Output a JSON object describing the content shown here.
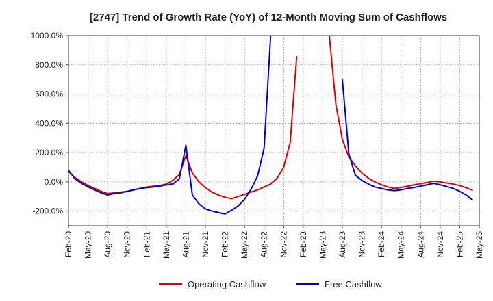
{
  "chart_data": {
    "type": "line",
    "title": "[2747]  Trend of Growth Rate (YoY) of 12-Month Moving Sum of Cashflows",
    "xlabel": "",
    "ylabel": "",
    "ylim": [
      -300,
      1000
    ],
    "y_ticks": [
      -200,
      0,
      200,
      400,
      600,
      800,
      1000
    ],
    "y_tick_labels": [
      "-200.0%",
      "0.0%",
      "200.0%",
      "400.0%",
      "600.0%",
      "800.0%",
      "1000.0%"
    ],
    "x_tick_labels": [
      "Feb-20",
      "May-20",
      "Aug-20",
      "Nov-20",
      "Feb-21",
      "May-21",
      "Aug-21",
      "Nov-21",
      "Feb-22",
      "May-22",
      "Aug-22",
      "Nov-22",
      "Feb-23",
      "May-23",
      "Aug-23",
      "Nov-23",
      "Feb-24",
      "May-24",
      "Aug-24",
      "Nov-24",
      "Feb-25",
      "May-25"
    ],
    "grid": true,
    "legend_position": "bottom",
    "series": [
      {
        "name": "Operating Cashflow",
        "color": "#dd0000",
        "points": [
          [
            0,
            70
          ],
          [
            1,
            30
          ],
          [
            2,
            0
          ],
          [
            3,
            -25
          ],
          [
            4,
            -45
          ],
          [
            5,
            -65
          ],
          [
            6,
            -80
          ],
          [
            7,
            -75
          ],
          [
            8,
            -70
          ],
          [
            9,
            -65
          ],
          [
            10,
            -55
          ],
          [
            11,
            -45
          ],
          [
            12,
            -35
          ],
          [
            13,
            -30
          ],
          [
            14,
            -25
          ],
          [
            15,
            -15
          ],
          [
            16,
            10
          ],
          [
            17,
            50
          ],
          [
            18,
            180
          ],
          [
            19,
            60
          ],
          [
            20,
            0
          ],
          [
            21,
            -40
          ],
          [
            22,
            -70
          ],
          [
            23,
            -90
          ],
          [
            24,
            -105
          ],
          [
            25,
            -115
          ],
          [
            26,
            -100
          ],
          [
            27,
            -85
          ],
          [
            28,
            -70
          ],
          [
            29,
            -55
          ],
          [
            30,
            -35
          ],
          [
            31,
            -15
          ],
          [
            32,
            25
          ],
          [
            33,
            100
          ],
          [
            34,
            270
          ],
          [
            35,
            860
          ],
          null,
          [
            40,
            1000
          ],
          [
            41,
            530
          ],
          [
            42,
            290
          ],
          [
            43,
            170
          ],
          [
            44,
            110
          ],
          [
            45,
            60
          ],
          [
            46,
            25
          ],
          [
            47,
            0
          ],
          [
            48,
            -20
          ],
          [
            49,
            -35
          ],
          [
            50,
            -45
          ],
          [
            51,
            -38
          ],
          [
            52,
            -30
          ],
          [
            53,
            -20
          ],
          [
            54,
            -12
          ],
          [
            55,
            -5
          ],
          [
            56,
            5
          ],
          [
            57,
            0
          ],
          [
            58,
            -8
          ],
          [
            59,
            -15
          ],
          [
            60,
            -25
          ],
          [
            61,
            -40
          ],
          [
            62,
            -58
          ]
        ]
      },
      {
        "name": "Free Cashflow",
        "color": "#0000cc",
        "points": [
          [
            0,
            80
          ],
          [
            1,
            20
          ],
          [
            2,
            -10
          ],
          [
            3,
            -35
          ],
          [
            4,
            -55
          ],
          [
            5,
            -75
          ],
          [
            6,
            -90
          ],
          [
            7,
            -80
          ],
          [
            8,
            -75
          ],
          [
            9,
            -65
          ],
          [
            10,
            -55
          ],
          [
            11,
            -45
          ],
          [
            12,
            -40
          ],
          [
            13,
            -35
          ],
          [
            14,
            -30
          ],
          [
            15,
            -20
          ],
          [
            16,
            -15
          ],
          [
            17,
            20
          ],
          [
            18,
            250
          ],
          [
            19,
            -90
          ],
          [
            20,
            -150
          ],
          [
            21,
            -185
          ],
          [
            22,
            -200
          ],
          [
            23,
            -210
          ],
          [
            24,
            -220
          ],
          [
            25,
            -195
          ],
          [
            26,
            -165
          ],
          [
            27,
            -120
          ],
          [
            28,
            -50
          ],
          [
            29,
            40
          ],
          [
            30,
            230
          ],
          [
            31,
            1000
          ],
          null,
          [
            42,
            700
          ],
          [
            43,
            190
          ],
          [
            44,
            45
          ],
          [
            45,
            10
          ],
          [
            46,
            -15
          ],
          [
            47,
            -35
          ],
          [
            48,
            -45
          ],
          [
            49,
            -55
          ],
          [
            50,
            -60
          ],
          [
            51,
            -55
          ],
          [
            52,
            -45
          ],
          [
            53,
            -38
          ],
          [
            54,
            -30
          ],
          [
            55,
            -20
          ],
          [
            56,
            -10
          ],
          [
            57,
            -20
          ],
          [
            58,
            -32
          ],
          [
            59,
            -45
          ],
          [
            60,
            -65
          ],
          [
            61,
            -90
          ],
          [
            62,
            -125
          ]
        ]
      }
    ]
  }
}
